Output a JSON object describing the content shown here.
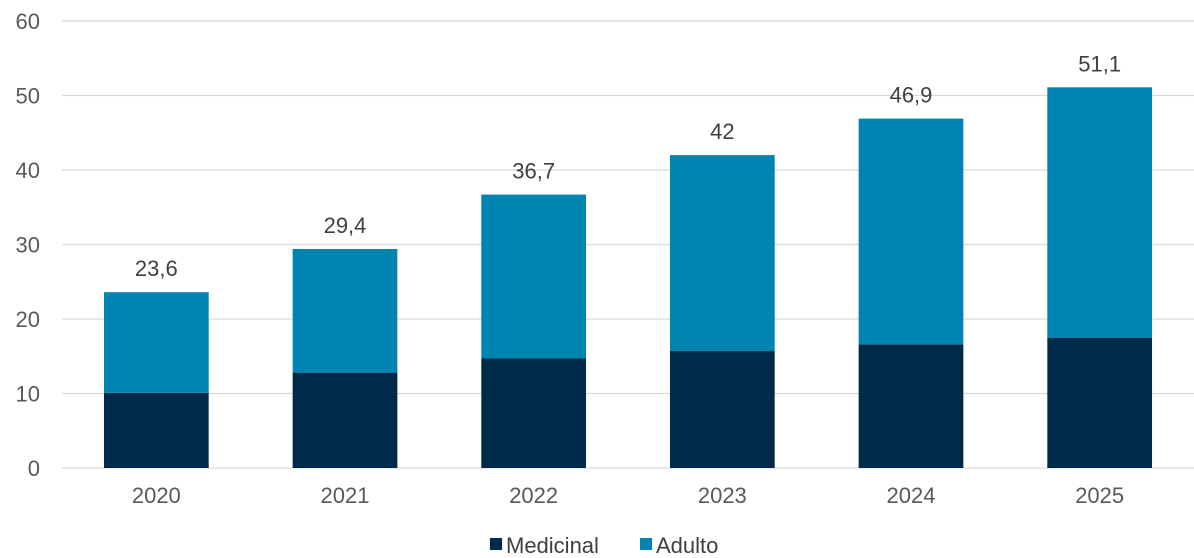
{
  "chart_data": {
    "type": "bar",
    "stacked": true,
    "categories": [
      "2020",
      "2021",
      "2022",
      "2023",
      "2024",
      "2025"
    ],
    "series": [
      {
        "name": "Medicinal",
        "values": [
          10.1,
          12.8,
          14.7,
          15.7,
          16.6,
          17.5
        ],
        "color": "#002a4a"
      },
      {
        "name": "Adulto",
        "values": [
          13.5,
          16.6,
          22.0,
          26.3,
          30.3,
          33.6
        ],
        "color": "#0085b3"
      }
    ],
    "totals": [
      "23,6",
      "29,4",
      "36,7",
      "42",
      "46,9",
      "51,1"
    ],
    "title": "",
    "xlabel": "",
    "ylabel": "",
    "ylim": [
      0,
      60
    ],
    "yticks": [
      0,
      10,
      20,
      30,
      40,
      50,
      60
    ],
    "grid": true,
    "legend_position": "bottom"
  }
}
